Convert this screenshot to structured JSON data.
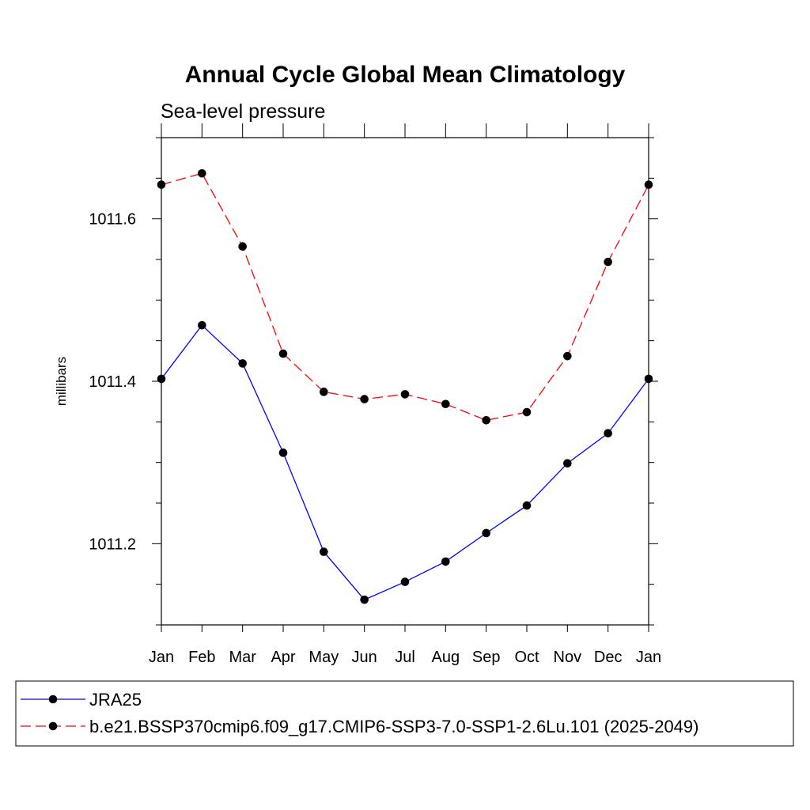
{
  "chart_data": {
    "type": "line",
    "title": "Annual Cycle Global Mean Climatology",
    "subtitle": "Sea-level pressure",
    "ylabel": "millibars",
    "xlabel": "",
    "categories": [
      "Jan",
      "Feb",
      "Mar",
      "Apr",
      "May",
      "Jun",
      "Jul",
      "Aug",
      "Sep",
      "Oct",
      "Nov",
      "Dec",
      "Jan"
    ],
    "ylim": [
      1011.1,
      1011.7
    ],
    "yticks_major": [
      1011.2,
      1011.4,
      1011.6
    ],
    "ytick_labels": [
      "1011.2",
      "1011.4",
      "1011.6"
    ],
    "yticks_minor": [
      1011.1,
      1011.15,
      1011.25,
      1011.3,
      1011.35,
      1011.45,
      1011.5,
      1011.55,
      1011.65,
      1011.7
    ],
    "grid": false,
    "legend_position": "bottom",
    "series": [
      {
        "name": "JRA25",
        "color": "#0000ff",
        "dash": "solid",
        "values": [
          1011.403,
          1011.469,
          1011.422,
          1011.312,
          1011.19,
          1011.131,
          1011.153,
          1011.178,
          1011.213,
          1011.247,
          1011.299,
          1011.336,
          1011.403
        ]
      },
      {
        "name": "b.e21.BSSP370cmip6.f09_g17.CMIP6-SSP3-7.0-SSP1-2.6Lu.101 (2025-2049)",
        "color": "#ff0000",
        "dash": "dashed",
        "values": [
          1011.642,
          1011.656,
          1011.566,
          1011.434,
          1011.387,
          1011.378,
          1011.384,
          1011.372,
          1011.352,
          1011.362,
          1011.431,
          1011.547,
          1011.642
        ]
      }
    ]
  }
}
